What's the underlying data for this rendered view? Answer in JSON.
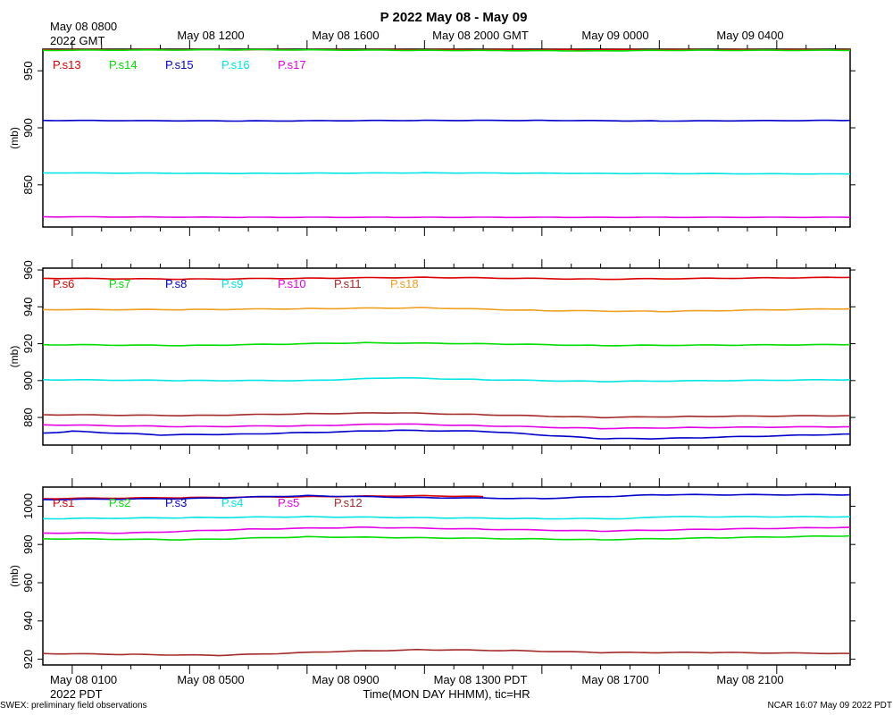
{
  "title": "P 2022 May 08 - May 09",
  "top_axis": {
    "first_tick": [
      "May 08 0800",
      "2022 GMT"
    ],
    "ticks": [
      "May 08 1200",
      "May 08 1600",
      "May 08 2000 GMT",
      "May 09 0000",
      "May 09 0400"
    ]
  },
  "bottom_axis": {
    "first_tick": [
      "May 08 0100",
      "2022 PDT"
    ],
    "ticks": [
      "May 08 0500",
      "May 08 0900",
      "May 08 1300 PDT",
      "May 08 1700",
      "May 08 2100"
    ],
    "label": "Time(MON DAY HHMM), tic=HR"
  },
  "footer": {
    "left": "SWEX: preliminary field observations",
    "right": "NCAR 16:07 May 09 2022 PDT"
  },
  "chart_data": [
    {
      "type": "line",
      "panel": "top",
      "ylabel": "(mb)",
      "ylim": [
        813,
        969
      ],
      "yticks": [
        850,
        900,
        950
      ],
      "xlabel_hours": "x = hours after May 08 0100 PDT",
      "x_range": [
        -1.0,
        26.5
      ],
      "legend_position": "top-left",
      "series": [
        {
          "name": "P.s13",
          "color": "#dd0000",
          "x": [
            -1,
            26.5
          ],
          "y": [
            968.5,
            968.5
          ]
        },
        {
          "name": "P.s14",
          "color": "#00dd00",
          "x": [
            -1,
            6,
            12,
            18,
            20,
            26.5
          ],
          "y": [
            968.0,
            968.5,
            968.0,
            967.5,
            968.0,
            968.0
          ]
        },
        {
          "name": "P.s15",
          "color": "#0000cc",
          "x": [
            -1,
            6,
            12,
            16,
            20,
            26.5
          ],
          "y": [
            906.5,
            906.0,
            906.5,
            906.5,
            906.0,
            906.5
          ]
        },
        {
          "name": "P.s16",
          "color": "#00e5e5",
          "x": [
            -1,
            6,
            12,
            18,
            26.5
          ],
          "y": [
            860.5,
            860.0,
            860.5,
            860.0,
            859.5
          ]
        },
        {
          "name": "P.s17",
          "color": "#e500e5",
          "x": [
            -1,
            6,
            12,
            18,
            26.5
          ],
          "y": [
            822.0,
            821.5,
            821.5,
            821.5,
            821.5
          ]
        }
      ]
    },
    {
      "type": "line",
      "panel": "middle",
      "ylabel": "(mb)",
      "ylim": [
        865,
        961
      ],
      "yticks": [
        880,
        900,
        920,
        940,
        960
      ],
      "x_range": [
        -1.0,
        26.5
      ],
      "legend_position": "top-left",
      "series": [
        {
          "name": "P.s6",
          "color": "#dd0000",
          "x": [
            -1,
            4,
            8,
            12,
            18,
            26.5
          ],
          "y": [
            955.5,
            955.0,
            955.5,
            956.0,
            955.0,
            956.0
          ]
        },
        {
          "name": "P.s7",
          "color": "#00dd00",
          "x": [
            -1,
            4,
            10,
            14,
            18,
            26.5
          ],
          "y": [
            919.5,
            919.0,
            920.5,
            920.0,
            919.0,
            919.5
          ]
        },
        {
          "name": "P.s8",
          "color": "#0000cc",
          "x": [
            -1,
            0,
            3,
            6,
            11,
            14,
            18,
            20,
            26.5
          ],
          "y": [
            871.5,
            872.5,
            870.5,
            871.0,
            873.0,
            872.5,
            868.5,
            868.5,
            871.0
          ]
        },
        {
          "name": "P.s9",
          "color": "#00e5e5",
          "x": [
            -1,
            4,
            8,
            11,
            14,
            18,
            26.5
          ],
          "y": [
            900.5,
            900.0,
            900.0,
            901.5,
            900.5,
            899.5,
            900.5
          ]
        },
        {
          "name": "P.s10",
          "color": "#e500e5",
          "x": [
            -1,
            4,
            8,
            11,
            14,
            18,
            21,
            26.5
          ],
          "y": [
            876.0,
            875.0,
            875.5,
            876.5,
            875.5,
            874.0,
            874.5,
            875.0
          ]
        },
        {
          "name": "P.s11",
          "color": "#a52a2a",
          "x": [
            -1,
            4,
            8,
            11,
            14,
            18,
            21,
            26.5
          ],
          "y": [
            881.5,
            881.0,
            882.0,
            882.5,
            881.5,
            880.0,
            880.5,
            881.0
          ]
        },
        {
          "name": "P.s18",
          "color": "#f0a020",
          "x": [
            -1,
            4,
            8,
            12,
            16,
            20,
            26.5
          ],
          "y": [
            938.5,
            938.5,
            939.0,
            939.5,
            938.0,
            937.5,
            939.0
          ]
        }
      ]
    },
    {
      "type": "line",
      "panel": "bottom",
      "ylabel": "(mb)",
      "ylim": [
        917,
        1010
      ],
      "yticks": [
        920,
        940,
        960,
        980,
        1000
      ],
      "x_range": [
        -1.0,
        26.5
      ],
      "legend_position": "top-left",
      "series": [
        {
          "name": "P.s1",
          "color": "#dd0000",
          "x": [
            -1,
            4,
            8,
            12,
            14
          ],
          "y": [
            1004.0,
            1004.5,
            1005.0,
            1005.5,
            1005.0
          ]
        },
        {
          "name": "P.s2",
          "color": "#00dd00",
          "x": [
            -1,
            4,
            8,
            12,
            18,
            22,
            26.5
          ],
          "y": [
            983.0,
            982.5,
            984.0,
            983.5,
            982.5,
            983.5,
            984.5
          ]
        },
        {
          "name": "P.s3",
          "color": "#0000cc",
          "x": [
            -1,
            4,
            8,
            12,
            16,
            20,
            26.5
          ],
          "y": [
            1003.5,
            1004.0,
            1005.5,
            1004.5,
            1004.0,
            1006.0,
            1006.0
          ]
        },
        {
          "name": "P.s4",
          "color": "#00e5e5",
          "x": [
            -1,
            4,
            8,
            12,
            16,
            19,
            20,
            26.5
          ],
          "y": [
            993.5,
            994.0,
            994.5,
            994.0,
            993.5,
            993.5,
            994.5,
            994.5
          ]
        },
        {
          "name": "P.s5",
          "color": "#e500e5",
          "x": [
            -1,
            2,
            6,
            10,
            14,
            18,
            22,
            26.5
          ],
          "y": [
            986.0,
            986.0,
            988.0,
            989.0,
            988.0,
            987.0,
            988.0,
            989.0
          ]
        },
        {
          "name": "P.s12",
          "color": "#a52a2a",
          "x": [
            -1,
            2,
            5,
            9,
            12,
            15,
            18,
            22,
            26.5
          ],
          "y": [
            923.0,
            922.5,
            922.0,
            924.0,
            925.0,
            924.5,
            923.5,
            923.5,
            923.0
          ]
        }
      ]
    }
  ]
}
